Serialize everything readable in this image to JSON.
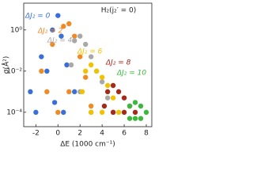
{
  "chart_data": {
    "type": "scatter",
    "annotation": "H₂(j₂′ = 0)",
    "x_label": "ΔE (1000 cm⁻¹)",
    "y_label": "σ(Å²)",
    "log_y": true,
    "xlim": [
      -3.1,
      8.5
    ],
    "xticks": [
      -2,
      0,
      2,
      4,
      6,
      8
    ],
    "ylim": [
      2e-05,
      20
    ],
    "yticks": [
      {
        "value": 0.0001,
        "label": "10⁻⁴"
      },
      {
        "value": 0.01,
        "label": "10⁻²"
      },
      {
        "value": 1,
        "label": "10⁰"
      }
    ],
    "series": [
      {
        "name": "ΔJ₂ = 0",
        "color": "#3b6fd8",
        "x": [
          -2.5,
          -1.5,
          -0.5,
          0,
          0.3,
          -1,
          0.8,
          1.5,
          -2,
          0.5,
          -0.3
        ],
        "values": [
          0.001,
          0.05,
          1,
          5,
          0.5,
          0.01,
          0.02,
          0.001,
          0.0001,
          0.0001,
          0.0003
        ]
      },
      {
        "name": "ΔJ₂ = 2",
        "color": "#f08a24",
        "x": [
          -1.5,
          -0.5,
          0.5,
          1,
          1.5,
          2,
          2.5,
          0,
          1,
          3,
          -1
        ],
        "values": [
          0.01,
          0.2,
          1.5,
          2,
          0.5,
          0.05,
          0.005,
          0.0001,
          0.001,
          0.0002,
          0.001
        ]
      },
      {
        "name": "ΔJ₂ = 4",
        "color": "#a8a8a8",
        "x": [
          1.5,
          2,
          2.5,
          3,
          3.5,
          4,
          4.5,
          2,
          3,
          1.2,
          5
        ],
        "values": [
          0.3,
          0.5,
          0.2,
          0.05,
          0.01,
          0.003,
          0.0005,
          0.001,
          0.0001,
          0.02,
          0.0001
        ]
      },
      {
        "name": "ΔJ₂ = 6",
        "color": "#f2c200",
        "x": [
          2.5,
          3,
          3.5,
          4,
          4.5,
          5,
          3,
          4,
          5.5,
          2.2
        ],
        "values": [
          0.01,
          0.02,
          0.01,
          0.005,
          0.002,
          0.0005,
          0.0001,
          0.0001,
          0.0001,
          0.001
        ]
      },
      {
        "name": "ΔJ₂ = 8",
        "color": "#a52a1a",
        "x": [
          4.5,
          5,
          5.5,
          6,
          6.5,
          5,
          6,
          4.2,
          7
        ],
        "values": [
          0.001,
          0.002,
          0.001,
          0.0005,
          0.0002,
          0.0001,
          0.0001,
          0.0002,
          0.0001
        ]
      },
      {
        "name": "ΔJ₂ = 10",
        "color": "#3cb83c",
        "x": [
          6.5,
          7,
          7.5,
          7,
          6.5,
          8,
          7.5
        ],
        "values": [
          0.0002,
          0.0003,
          0.0002,
          5e-05,
          5e-05,
          0.0001,
          5e-05
        ]
      }
    ]
  }
}
